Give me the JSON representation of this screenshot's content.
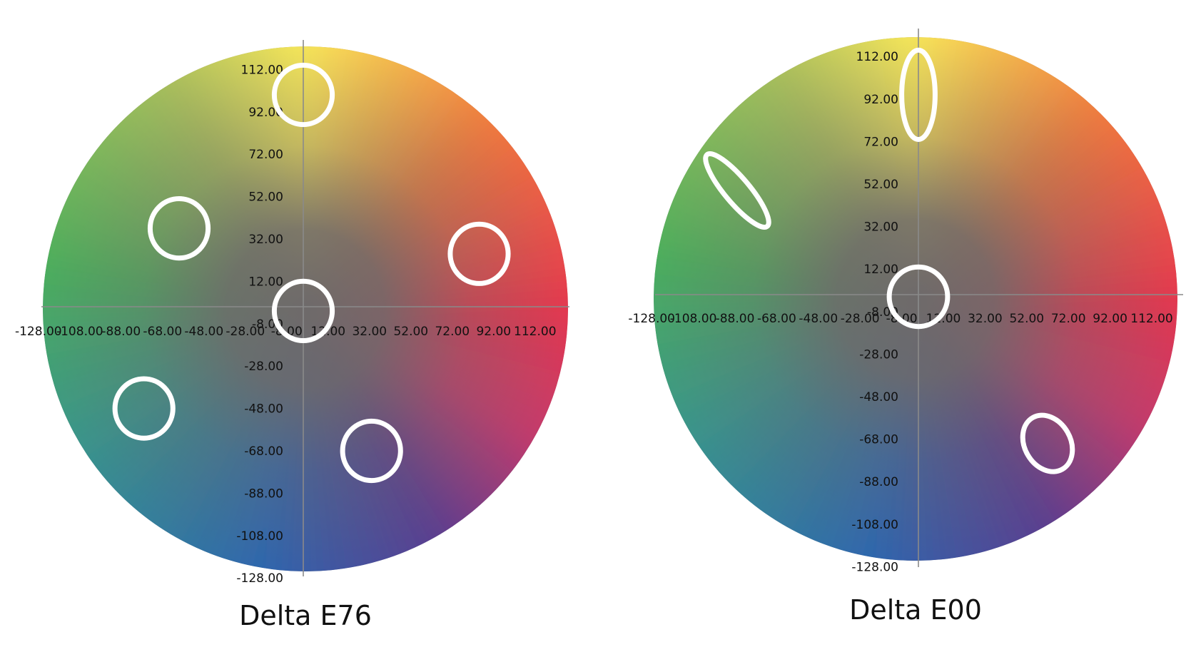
{
  "chart_data": [
    {
      "type": "scatter",
      "title": "Delta E76",
      "xlabel": "",
      "ylabel": "",
      "xlim": [
        -128,
        128
      ],
      "ylim": [
        -128,
        128
      ],
      "x_ticks": [
        "-128.00",
        "-108.00",
        "-88.00",
        "-68.00",
        "-48.00",
        "-28.00",
        "-8.00",
        "12.00",
        "32.00",
        "52.00",
        "72.00",
        "92.00",
        "112.00"
      ],
      "y_ticks": [
        "112.00",
        "92.00",
        "72.00",
        "52.00",
        "32.00",
        "12.00",
        "-8.00",
        "-28.00",
        "-48.00",
        "-68.00",
        "-88.00",
        "-108.00",
        "-128.00"
      ],
      "background": "CIELAB a*b* color wheel",
      "tolerance_ellipses": [
        {
          "a": 0,
          "b": 100,
          "rx": 14,
          "ry": 14,
          "angle": 0
        },
        {
          "a": -60,
          "b": 37,
          "rx": 14,
          "ry": 14,
          "angle": 0
        },
        {
          "a": 85,
          "b": 25,
          "rx": 14,
          "ry": 14,
          "angle": 0
        },
        {
          "a": 0,
          "b": -2,
          "rx": 14,
          "ry": 14,
          "angle": 0
        },
        {
          "a": -77,
          "b": -48,
          "rx": 14,
          "ry": 14,
          "angle": 0
        },
        {
          "a": 33,
          "b": -68,
          "rx": 14,
          "ry": 14,
          "angle": 0
        }
      ]
    },
    {
      "type": "scatter",
      "title": "Delta E00",
      "xlabel": "",
      "ylabel": "",
      "xlim": [
        -128,
        128
      ],
      "ylim": [
        -128,
        128
      ],
      "x_ticks": [
        "-128.00",
        "-108.00",
        "-88.00",
        "-68.00",
        "-48.00",
        "-28.00",
        "-8.00",
        "12.00",
        "32.00",
        "52.00",
        "72.00",
        "92.00",
        "112.00"
      ],
      "y_ticks": [
        "112.00",
        "92.00",
        "72.00",
        "52.00",
        "32.00",
        "12.00",
        "-8.00",
        "-28.00",
        "-48.00",
        "-68.00",
        "-88.00",
        "-108.00",
        "-128.00"
      ],
      "background": "CIELAB a*b* color wheel",
      "tolerance_ellipses": [
        {
          "a": 0,
          "b": 94,
          "rx": 8,
          "ry": 21,
          "angle": 0
        },
        {
          "a": -87,
          "b": 49,
          "rx": 6,
          "ry": 22,
          "angle": -40
        },
        {
          "a": 0,
          "b": -1,
          "rx": 14,
          "ry": 14,
          "angle": 0
        },
        {
          "a": 62,
          "b": -70,
          "rx": 11,
          "ry": 14,
          "angle": -30
        }
      ]
    }
  ],
  "colors": {
    "yellow": "#f7e65a",
    "orange": "#ee7a3e",
    "red": "#e4394f",
    "magenta": "#c23a6c",
    "purple": "#5c3f8f",
    "blue": "#2f66ad",
    "teal": "#3a948b",
    "green": "#4cae5c",
    "center_gray": "#6e6a6a",
    "ellipse_stroke": "#ffffff",
    "axis_line": "#8a8a8a"
  }
}
